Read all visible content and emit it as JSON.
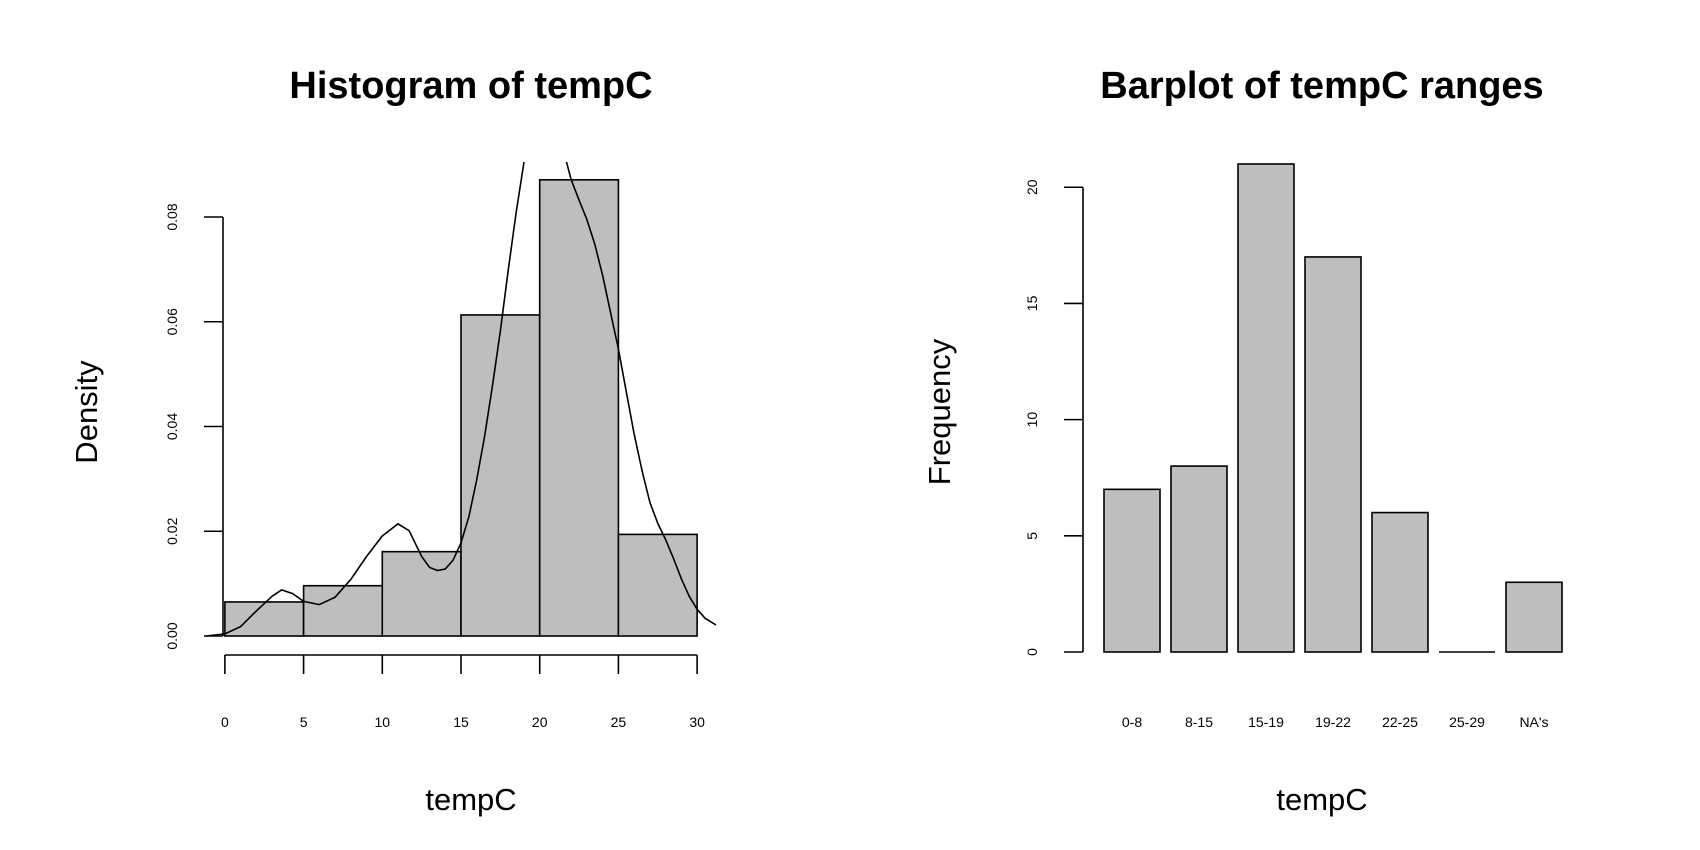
{
  "colors": {
    "bar_fill": "#bebebe",
    "stroke": "#000000",
    "background": "#ffffff"
  },
  "chart_data": [
    {
      "type": "bar",
      "subtype": "histogram",
      "title": "Histogram of tempC",
      "xlabel": "tempC",
      "ylabel": "Density",
      "bins": [
        {
          "from": 0,
          "to": 5,
          "density": 0.0065
        },
        {
          "from": 5,
          "to": 10,
          "density": 0.0096
        },
        {
          "from": 10,
          "to": 15,
          "density": 0.0161
        },
        {
          "from": 15,
          "to": 20,
          "density": 0.0613
        },
        {
          "from": 20,
          "to": 25,
          "density": 0.0871
        },
        {
          "from": 25,
          "to": 30,
          "density": 0.0194
        }
      ],
      "xlim": [
        -1.2,
        31.2
      ],
      "ylim": [
        0,
        0.0905
      ],
      "xticks": [
        0,
        5,
        10,
        15,
        20,
        25,
        30
      ],
      "yticks": [
        0,
        0.02,
        0.04,
        0.06,
        0.08
      ],
      "ytick_labels": [
        "0.00",
        "0.02",
        "0.04",
        "0.06",
        "0.08"
      ],
      "density_line": {
        "x": [
          -1.2,
          0,
          1,
          2,
          3,
          3.6,
          4.3,
          5,
          6,
          7,
          8,
          9,
          10,
          11,
          11.7,
          12.5,
          13,
          13.5,
          14,
          14.5,
          15,
          15.5,
          16,
          16.5,
          17,
          17.5,
          18,
          18.5,
          19
        ],
        "y": [
          0.0,
          0.0004,
          0.0018,
          0.0048,
          0.0076,
          0.0088,
          0.0081,
          0.0066,
          0.006,
          0.0074,
          0.0108,
          0.0152,
          0.0191,
          0.0214,
          0.0201,
          0.0152,
          0.0131,
          0.0125,
          0.0128,
          0.0145,
          0.0178,
          0.0228,
          0.0298,
          0.0381,
          0.0478,
          0.0583,
          0.0698,
          0.0808,
          0.0905
        ]
      },
      "density_line_2": {
        "x": [
          21.7,
          22,
          22.5,
          23,
          23.5,
          24,
          24.5,
          25,
          25.5,
          26,
          26.5,
          27,
          27.5,
          28,
          28.5,
          29,
          29.5,
          30,
          30.5,
          31.2
        ],
        "y": [
          0.0905,
          0.0871,
          0.0832,
          0.0795,
          0.0748,
          0.0688,
          0.0618,
          0.0548,
          0.0466,
          0.0386,
          0.0316,
          0.0255,
          0.0215,
          0.0184,
          0.0148,
          0.0109,
          0.0076,
          0.0051,
          0.0034,
          0.0021
        ]
      }
    },
    {
      "type": "bar",
      "title": "Barplot of tempC ranges",
      "xlabel": "tempC",
      "ylabel": "Frequency",
      "categories": [
        "0-8",
        "8-15",
        "15-19",
        "19-22",
        "22-25",
        "25-29",
        "NA's"
      ],
      "values": [
        7,
        8,
        21,
        17,
        6,
        0,
        3
      ],
      "ylim": [
        0,
        21
      ],
      "yticks": [
        0,
        5,
        10,
        15,
        20
      ]
    }
  ]
}
